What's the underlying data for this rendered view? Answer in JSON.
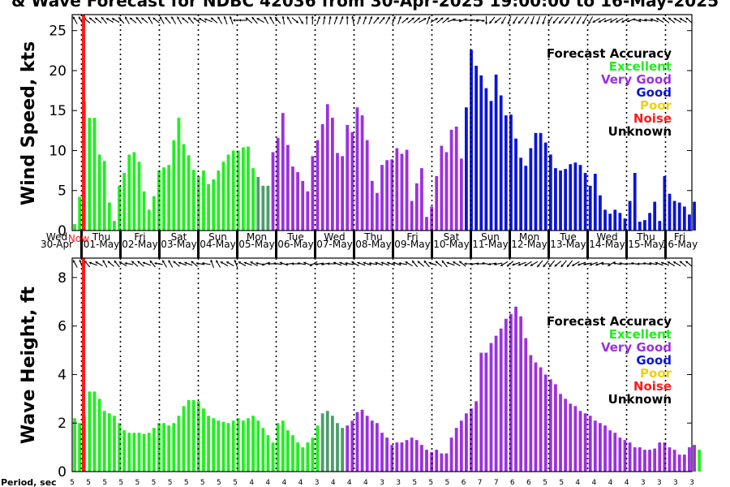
{
  "chart_data": {
    "type": "bar",
    "title": "& Wave Forecast for NDBC 42036 from 30-Apr-2025 19:00:00 to 16-May-2025",
    "now_label": "Now",
    "day_labels": [
      {
        "weekday": "Wed",
        "date": "30-Apr"
      },
      {
        "weekday": "Thu",
        "date": "01-May"
      },
      {
        "weekday": "Fri",
        "date": "02-May"
      },
      {
        "weekday": "Sat",
        "date": "03-May"
      },
      {
        "weekday": "Sun",
        "date": "04-May"
      },
      {
        "weekday": "Mon",
        "date": "05-May"
      },
      {
        "weekday": "Tue",
        "date": "06-May"
      },
      {
        "weekday": "Wed",
        "date": "07-May"
      },
      {
        "weekday": "Thu",
        "date": "08-May"
      },
      {
        "weekday": "Fri",
        "date": "09-May"
      },
      {
        "weekday": "Sat",
        "date": "10-May"
      },
      {
        "weekday": "Sun",
        "date": "11-May"
      },
      {
        "weekday": "Mon",
        "date": "12-May"
      },
      {
        "weekday": "Tue",
        "date": "13-May"
      },
      {
        "weekday": "Wed",
        "date": "14-May"
      },
      {
        "weekday": "Thu",
        "date": "15-May"
      },
      {
        "weekday": "Fri",
        "date": "16-May"
      }
    ],
    "legend": {
      "title": "Forecast Accuracy",
      "items": [
        {
          "label": "Excellent",
          "color": "#22ee22"
        },
        {
          "label": "Very Good",
          "color": "#9b30e0"
        },
        {
          "label": "Good",
          "color": "#0a14d8"
        },
        {
          "label": "Poor",
          "color": "#f0d010"
        },
        {
          "label": "Noise",
          "color": "#ff1a1a"
        },
        {
          "label": "Unknown",
          "color": "#000000"
        }
      ]
    },
    "wind": {
      "ylabel": "Wind Speed, kts",
      "ylim": [
        0,
        27
      ],
      "yticks": [
        0,
        5,
        10,
        15,
        20,
        25
      ],
      "values": [
        0.8,
        4.2,
        16.1,
        14.1,
        14.1,
        9.5,
        8.7,
        3.5,
        1.2,
        5.6,
        7.2,
        9.5,
        9.8,
        8.6,
        4.9,
        2.6,
        4.3,
        7.5,
        7.9,
        8.2,
        11.3,
        14.1,
        10.8,
        9.4,
        7.6,
        6.8,
        7.5,
        5.8,
        6.4,
        7.5,
        8.6,
        9.5,
        10.0,
        10.0,
        10.4,
        10.5,
        7.8,
        6.7,
        5.6,
        5.6,
        9.8,
        11.6,
        14.7,
        10.7,
        8.0,
        7.3,
        6.2,
        4.9,
        9.3,
        11.3,
        13.3,
        15.8,
        14.1,
        9.7,
        9.3,
        13.2,
        12.3,
        15.4,
        14.4,
        11.3,
        6.2,
        4.7,
        8.2,
        8.8,
        8.9,
        10.3,
        9.6,
        10.1,
        3.7,
        5.9,
        7.8,
        1.7,
        3.0,
        6.8,
        10.6,
        9.8,
        12.6,
        13.0,
        9.0,
        15.4,
        22.6,
        20.6,
        19.4,
        17.8,
        16.2,
        19.5,
        16.9,
        14.4,
        14.5,
        11.5,
        9.1,
        8.1,
        10.3,
        12.2,
        12.2,
        11.0,
        9.5,
        7.8,
        7.5,
        7.7,
        8.3,
        8.5,
        8.2,
        7.2,
        5.6,
        7.1,
        4.4,
        2.6,
        2.1,
        2.6,
        2.2,
        1.5,
        3.7,
        7.2,
        1.1,
        1.3,
        2.2,
        3.6,
        1.2,
        6.8,
        4.6,
        3.7,
        3.5,
        3.0,
        2.0,
        3.6
      ],
      "colors": [
        "#22ee22",
        "#22ee22",
        "#22ee22",
        "#22ee22",
        "#22ee22",
        "#22ee22",
        "#22ee22",
        "#22ee22",
        "#22ee22",
        "#22ee22",
        "#22ee22",
        "#22ee22",
        "#22ee22",
        "#22ee22",
        "#22ee22",
        "#22ee22",
        "#22ee22",
        "#22ee22",
        "#22ee22",
        "#22ee22",
        "#22ee22",
        "#22ee22",
        "#22ee22",
        "#22ee22",
        "#22ee22",
        "#22ee22",
        "#22ee22",
        "#22ee22",
        "#22ee22",
        "#22ee22",
        "#22ee22",
        "#22ee22",
        "#22ee22",
        "#22ee22",
        "#22ee22",
        "#22ee22",
        "#22ee22",
        "#4a9e6a",
        "#4a9e6a",
        "#4a9e6a",
        "#9b30e0",
        "#9b30e0",
        "#9b30e0",
        "#9b30e0",
        "#9b30e0",
        "#9b30e0",
        "#9b30e0",
        "#9b30e0",
        "#9b30e0",
        "#9b30e0",
        "#9b30e0",
        "#9b30e0",
        "#9b30e0",
        "#9b30e0",
        "#9b30e0",
        "#9b30e0",
        "#9b30e0",
        "#9b30e0",
        "#9b30e0",
        "#9b30e0",
        "#9b30e0",
        "#9b30e0",
        "#9b30e0",
        "#9b30e0",
        "#9b30e0",
        "#9b30e0",
        "#9b30e0",
        "#9b30e0",
        "#9b30e0",
        "#9b30e0",
        "#9b30e0",
        "#9b30e0",
        "#9b30e0",
        "#9b30e0",
        "#9b30e0",
        "#9b30e0",
        "#9b30e0",
        "#9b30e0",
        "#9b30e0",
        "#0a14d8",
        "#0a14d8",
        "#0a14d8",
        "#0a14d8",
        "#0a14d8",
        "#0a14d8",
        "#0a14d8",
        "#0a14d8",
        "#0a14d8",
        "#0a14d8",
        "#0a14d8",
        "#0a14d8",
        "#0a14d8",
        "#0a14d8",
        "#0a14d8",
        "#0a14d8",
        "#0a14d8",
        "#0a14d8",
        "#0a14d8",
        "#0a14d8",
        "#0a14d8",
        "#0a14d8",
        "#0a14d8",
        "#0a14d8",
        "#0a14d8",
        "#0a14d8",
        "#0a14d8",
        "#0a14d8",
        "#0a14d8",
        "#0a14d8",
        "#0a14d8",
        "#0a14d8",
        "#0a14d8",
        "#0a14d8",
        "#0a14d8",
        "#0a14d8",
        "#0a14d8",
        "#0a14d8",
        "#0a14d8",
        "#0a14d8",
        "#0a14d8",
        "#0a14d8",
        "#0a14d8",
        "#0a14d8",
        "#0a14d8",
        "#0a14d8",
        "#0a14d8"
      ]
    },
    "wave": {
      "ylabel": "Wave Height, ft",
      "ylim": [
        0,
        8.8
      ],
      "yticks": [
        0,
        2,
        4,
        6,
        8
      ],
      "values": [
        2.2,
        2.0,
        2.3,
        3.3,
        3.3,
        3.0,
        2.5,
        2.4,
        2.3,
        2.0,
        1.7,
        1.6,
        1.6,
        1.6,
        1.55,
        1.6,
        1.8,
        2.0,
        2.0,
        1.9,
        2.0,
        2.3,
        2.7,
        2.95,
        2.95,
        2.9,
        2.6,
        2.3,
        2.2,
        2.1,
        2.05,
        2.0,
        2.1,
        2.2,
        2.1,
        2.2,
        2.3,
        2.1,
        1.8,
        1.5,
        1.2,
        2.0,
        2.1,
        1.7,
        1.5,
        1.2,
        1.0,
        1.2,
        1.4,
        1.9,
        2.4,
        2.5,
        2.3,
        2.0,
        1.8,
        1.9,
        2.1,
        2.45,
        2.55,
        2.3,
        2.1,
        2.0,
        1.6,
        1.4,
        1.1,
        1.2,
        1.2,
        1.3,
        1.4,
        1.3,
        1.1,
        0.9,
        0.8,
        0.9,
        0.75,
        0.75,
        1.4,
        1.8,
        2.1,
        2.4,
        2.6,
        2.9,
        4.9,
        4.9,
        5.3,
        5.6,
        5.9,
        6.3,
        6.5,
        6.8,
        6.4,
        5.5,
        4.8,
        4.5,
        4.3,
        4.0,
        3.8,
        3.6,
        3.2,
        3.0,
        2.8,
        2.7,
        2.5,
        2.4,
        2.3,
        2.1,
        2.0,
        1.9,
        1.7,
        1.6,
        1.4,
        1.3,
        1.2,
        1.0,
        1.0,
        0.9,
        0.9,
        0.95,
        1.2,
        1.2,
        1.0,
        0.9,
        0.7,
        0.7,
        1.0,
        1.1,
        0.9
      ],
      "colors": [
        "#22ee22",
        "#22ee22",
        "#22ee22",
        "#22ee22",
        "#22ee22",
        "#22ee22",
        "#22ee22",
        "#22ee22",
        "#22ee22",
        "#22ee22",
        "#22ee22",
        "#22ee22",
        "#22ee22",
        "#22ee22",
        "#22ee22",
        "#22ee22",
        "#22ee22",
        "#22ee22",
        "#22ee22",
        "#22ee22",
        "#22ee22",
        "#22ee22",
        "#22ee22",
        "#22ee22",
        "#22ee22",
        "#22ee22",
        "#22ee22",
        "#22ee22",
        "#22ee22",
        "#22ee22",
        "#22ee22",
        "#22ee22",
        "#22ee22",
        "#22ee22",
        "#22ee22",
        "#22ee22",
        "#22ee22",
        "#22ee22",
        "#22ee22",
        "#22ee22",
        "#22ee22",
        "#22ee22",
        "#22ee22",
        "#22ee22",
        "#22ee22",
        "#22ee22",
        "#22ee22",
        "#22ee22",
        "#22ee22",
        "#22ee22",
        "#4a9e6a",
        "#4a9e6a",
        "#4a9e6a",
        "#4a9e6a",
        "#4a9e6a",
        "#9b30e0",
        "#9b30e0",
        "#9b30e0",
        "#9b30e0",
        "#9b30e0",
        "#9b30e0",
        "#9b30e0",
        "#9b30e0",
        "#9b30e0",
        "#9b30e0",
        "#9b30e0",
        "#9b30e0",
        "#9b30e0",
        "#9b30e0",
        "#9b30e0",
        "#9b30e0",
        "#9b30e0",
        "#9b30e0",
        "#9b30e0",
        "#9b30e0",
        "#9b30e0",
        "#9b30e0",
        "#9b30e0",
        "#9b30e0",
        "#9b30e0",
        "#9b30e0",
        "#9b30e0",
        "#9b30e0",
        "#9b30e0",
        "#9b30e0",
        "#9b30e0",
        "#9b30e0",
        "#9b30e0",
        "#9b30e0",
        "#9b30e0",
        "#9b30e0",
        "#9b30e0",
        "#9b30e0",
        "#9b30e0",
        "#9b30e0",
        "#9b30e0",
        "#9b30e0",
        "#9b30e0",
        "#9b30e0",
        "#9b30e0",
        "#9b30e0",
        "#9b30e0",
        "#9b30e0",
        "#9b30e0",
        "#9b30e0",
        "#9b30e0",
        "#9b30e0",
        "#9b30e0",
        "#9b30e0",
        "#9b30e0",
        "#9b30e0",
        "#9b30e0",
        "#9b30e0",
        "#9b30e0",
        "#9b30e0",
        "#9b30e0",
        "#9b30e0",
        "#9b30e0",
        "#9b30e0",
        "#9b30e0",
        "#9b30e0",
        "#9b30e0",
        "#9b30e0",
        "#9b30e0",
        "#9b30e0",
        "#9b30e0"
      ]
    },
    "wind_dir_deg": [
      150,
      150,
      130,
      130,
      130,
      140,
      120,
      120,
      140,
      150,
      130,
      140,
      130,
      150,
      130,
      150,
      140,
      150,
      150,
      130,
      140,
      130,
      120,
      110,
      130,
      150,
      160,
      160,
      90,
      90,
      130,
      140,
      120,
      150,
      150,
      140,
      170,
      150,
      310,
      330,
      180,
      180,
      200,
      190,
      190,
      200,
      200,
      180,
      170,
      200,
      200,
      200,
      220,
      220,
      210,
      200,
      200,
      230,
      230,
      230,
      240,
      200,
      240,
      230,
      230,
      250,
      270,
      250,
      270,
      280,
      280,
      0,
      40,
      50,
      30,
      20,
      30,
      40,
      30,
      20,
      20,
      20,
      30,
      40,
      40,
      40,
      30,
      30,
      30,
      30,
      60,
      60,
      70,
      60,
      60,
      60,
      70,
      110,
      100,
      100,
      110,
      120,
      130,
      130,
      120,
      120,
      130
    ],
    "wave_dir_deg": [
      150,
      160,
      140,
      110,
      120,
      150,
      130,
      140,
      120,
      100,
      130,
      130,
      110,
      140,
      100,
      150,
      150,
      130,
      110,
      110,
      130,
      100,
      100,
      160,
      150,
      120,
      120,
      160,
      120,
      110,
      120,
      100,
      70,
      90,
      100,
      110,
      80,
      90,
      100,
      110,
      60,
      80,
      80,
      90,
      110,
      110,
      100,
      120,
      110,
      110,
      100,
      110,
      110,
      110,
      110,
      100,
      120,
      140,
      130,
      140,
      110,
      130,
      140,
      110,
      120,
      130,
      90,
      80,
      90,
      100,
      80,
      80,
      60,
      50,
      70,
      70,
      60,
      60,
      40,
      40,
      40,
      50,
      40,
      40,
      60,
      70,
      80,
      70,
      70,
      90,
      60,
      100,
      100,
      90,
      100,
      90,
      100,
      100,
      110,
      110,
      120,
      120,
      130,
      130
    ],
    "period_label": "Period, sec",
    "periods": [
      5,
      5,
      5,
      5,
      5,
      5,
      5,
      5,
      5,
      5,
      5,
      4,
      4,
      4,
      4,
      3,
      4,
      4,
      4,
      3,
      3,
      5,
      5,
      5,
      6,
      7,
      7,
      6,
      6,
      5,
      5,
      4,
      4,
      4,
      4,
      3,
      3,
      3,
      3
    ]
  }
}
